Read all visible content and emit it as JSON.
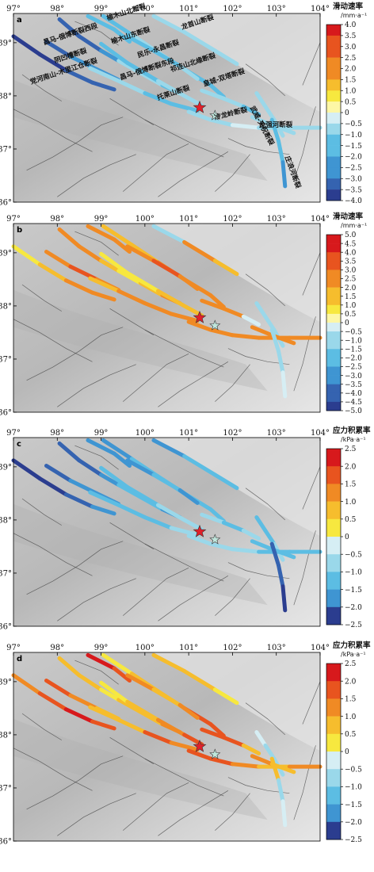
{
  "x_ticks": [
    "97°",
    "98°",
    "99°",
    "100°",
    "101°",
    "102°",
    "103°",
    "104°"
  ],
  "y_ticks": [
    "39°",
    "38°",
    "37°",
    "36°"
  ],
  "panels": [
    {
      "label": "a",
      "colorbar": {
        "title": "滑动速率",
        "unit": "/mm·a⁻¹",
        "values": [
          "4.0",
          "3.5",
          "3.0",
          "2.5",
          "2.0",
          "1.5",
          "1.0",
          "0.5",
          "0",
          "−0.5",
          "−1.0",
          "−1.5",
          "−2.0",
          "−2.5",
          "−3.0",
          "−3.5",
          "−4.0"
        ]
      },
      "fault_labels": [
        "榆木山北断裂",
        "龙首山断裂",
        "昌马-俄博断裂西段",
        "榆木山东断裂",
        "民乐-永昌断裂",
        "阴凹槽断裂",
        "祁连山北缘断裂",
        "皇城-双塔断裂",
        "武威-天祝断裂",
        "党河南山-木里江仓断裂",
        "昌马-俄博断裂东段",
        "托莱山断裂",
        "冷龙岭断裂",
        "金强河断裂",
        "庄浪河断裂"
      ]
    },
    {
      "label": "b",
      "colorbar": {
        "title": "滑动速率",
        "unit": "/mm·a⁻¹",
        "values": [
          "5.0",
          "4.5",
          "4.0",
          "3.5",
          "3.0",
          "2.5",
          "2.0",
          "1.5",
          "1.0",
          "0.5",
          "0",
          "−0.5",
          "−1.0",
          "−1.5",
          "−2.0",
          "−2.5",
          "−3.0",
          "−3.5",
          "−4.0",
          "−4.5",
          "−5.0"
        ]
      },
      "fault_labels": []
    },
    {
      "label": "c",
      "colorbar": {
        "title": "应力积累率",
        "unit": "/kPa·a⁻¹",
        "values": [
          "2.5",
          "2.0",
          "1.5",
          "1.0",
          "0.5",
          "0",
          "−0.5",
          "−1.0",
          "−1.5",
          "−2.0",
          "−2.5"
        ]
      },
      "fault_labels": []
    },
    {
      "label": "d",
      "colorbar": {
        "title": "应力积累率",
        "unit": "/kPa·a⁻¹",
        "values": [
          "2.5",
          "2.0",
          "1.5",
          "1.0",
          "0.5",
          "0",
          "−0.5",
          "−1.0",
          "−1.5",
          "−2.0",
          "−2.5"
        ]
      },
      "fault_labels": []
    }
  ],
  "colors": {
    "scale": [
      "#d7191c",
      "#e8541f",
      "#f08a24",
      "#f6bd2d",
      "#f7e83f",
      "#fdf7a6",
      "#d6eef4",
      "#9ad8ea",
      "#5cbde3",
      "#3f95d2",
      "#3563b0",
      "#2b3d8f"
    ],
    "relief_light": "#e3e3e3",
    "relief_dark": "#b0b0b0",
    "epicenter_main": "#e0202a",
    "epicenter_secondary": "#bfe6dc"
  }
}
